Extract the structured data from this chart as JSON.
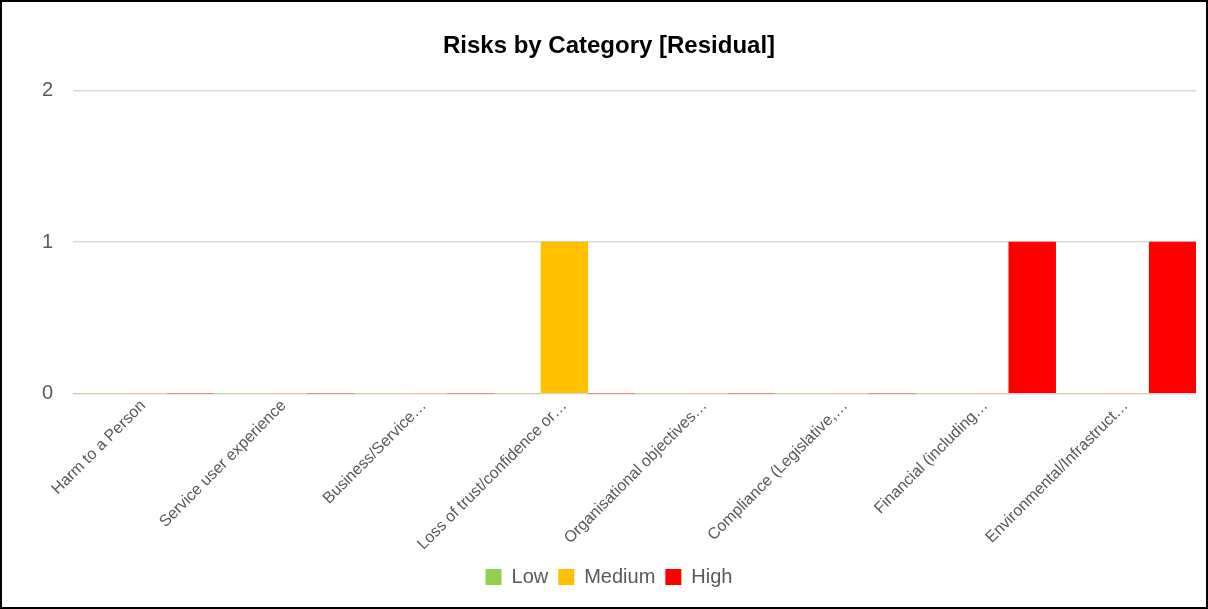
{
  "chart_data": {
    "type": "bar",
    "title": "Risks by Category [Residual]",
    "categories": [
      "Harm to a Person",
      "Service user experience",
      "Business/Service…",
      "Loss of trust/confidence or…",
      "Organisational objectives…",
      "Compliance (Legislative,…",
      "Financial (including…",
      "Environmental/Infrastruct…"
    ],
    "series": [
      {
        "name": "Low",
        "color": "#92d050",
        "values": [
          0,
          0,
          0,
          0,
          0,
          0,
          0,
          0
        ]
      },
      {
        "name": "Medium",
        "color": "#ffc000",
        "values": [
          0,
          0,
          0,
          1,
          0,
          0,
          0,
          0
        ]
      },
      {
        "name": "High",
        "color": "#ff0000",
        "values": [
          0,
          0,
          0,
          0,
          0,
          0,
          1,
          1
        ]
      }
    ],
    "ylim": [
      0,
      2
    ],
    "yticks": [
      0,
      1,
      2
    ],
    "grid": "y",
    "legend": "bottom"
  }
}
